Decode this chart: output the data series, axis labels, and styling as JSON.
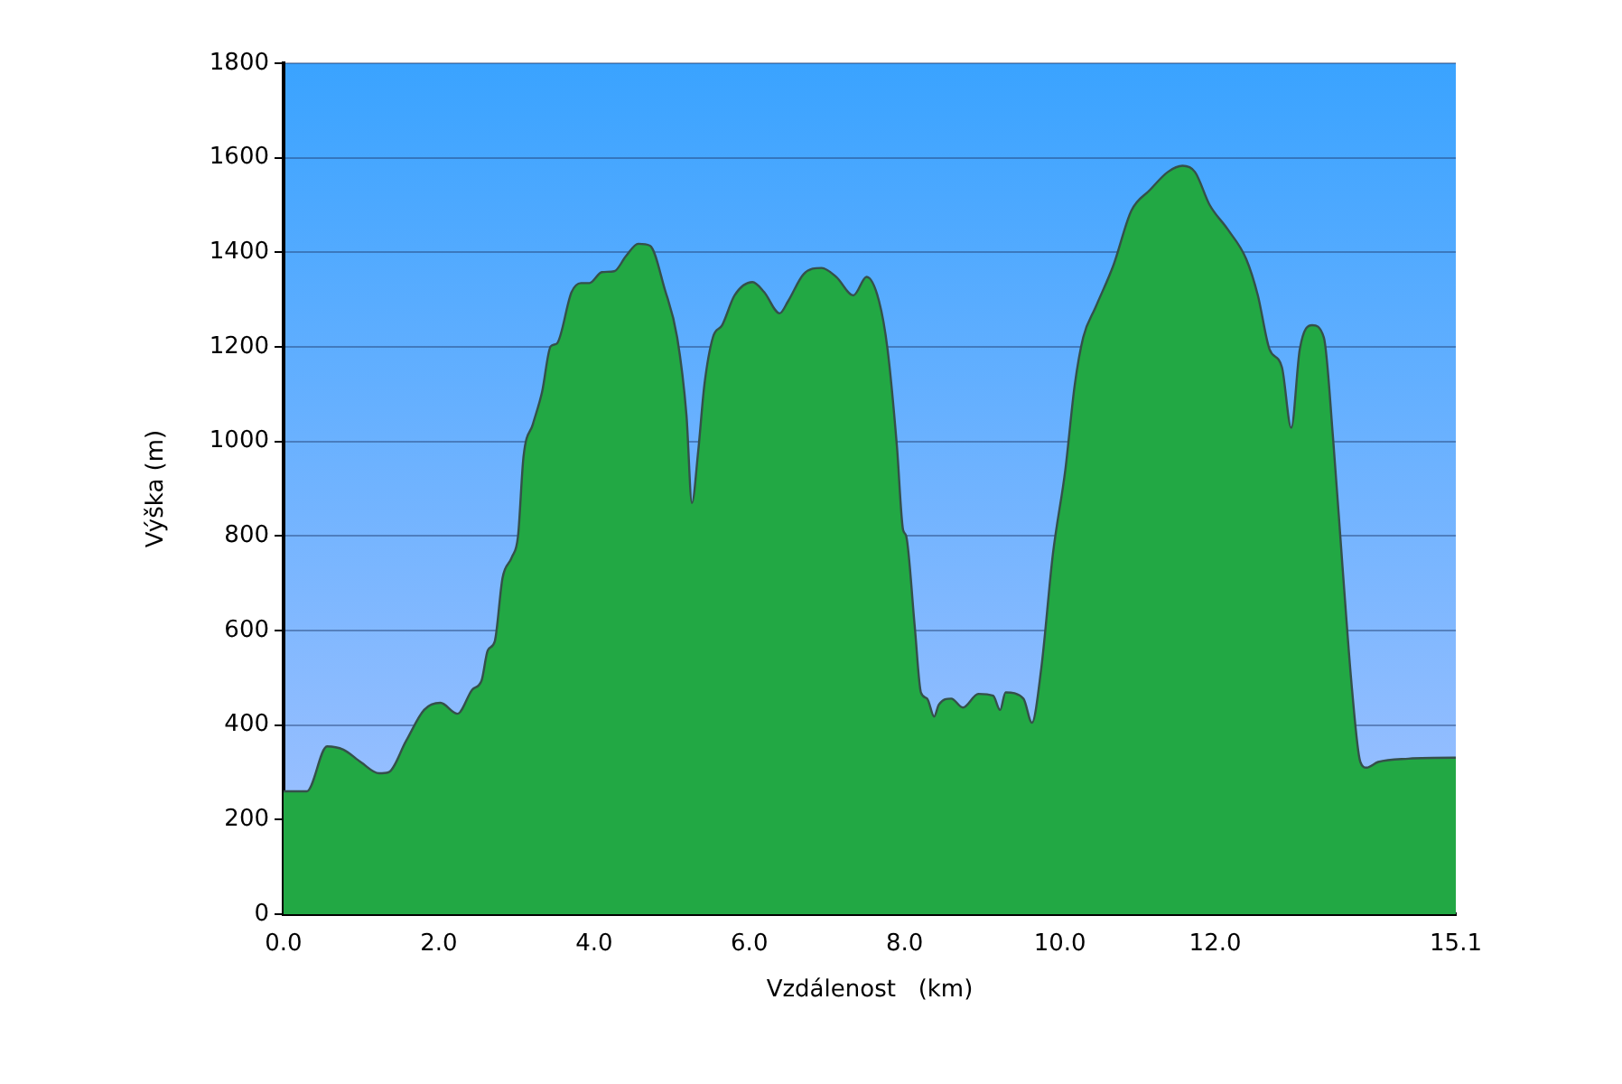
{
  "chart_data": {
    "type": "area",
    "xlabel": "Vzdálenost   (km)",
    "ylabel": "Výška (m)",
    "color": "#22a844",
    "grid": "y",
    "legend": false,
    "x": [
      0,
      0.3,
      0.56,
      0.77,
      1.0,
      1.23,
      1.35,
      1.58,
      1.81,
      2.02,
      2.24,
      2.43,
      2.55,
      2.63,
      2.72,
      2.82,
      2.94,
      3.02,
      3.09,
      3.21,
      3.33,
      3.44,
      3.52,
      3.71,
      3.83,
      3.94,
      4.1,
      4.26,
      4.41,
      4.57,
      4.72,
      4.91,
      5.07,
      5.19,
      5.26,
      5.34,
      5.42,
      5.53,
      5.65,
      5.81,
      6.04,
      6.19,
      6.39,
      6.5,
      6.7,
      6.93,
      7.12,
      7.34,
      7.51,
      7.67,
      7.78,
      7.9,
      7.98,
      8.02,
      8.13,
      8.21,
      8.29,
      8.38,
      8.44,
      8.6,
      8.75,
      8.95,
      9.14,
      9.23,
      9.3,
      9.53,
      9.64,
      9.76,
      9.91,
      10.07,
      10.19,
      10.3,
      10.46,
      10.69,
      10.92,
      11.16,
      11.39,
      11.58,
      11.74,
      11.93,
      12.16,
      12.4,
      12.55,
      12.7,
      12.86,
      12.98,
      13.09,
      13.25,
      13.4,
      13.52,
      13.64,
      13.76,
      13.87,
      13.95,
      14.1,
      14.49,
      15.07,
      15.1
    ],
    "values": [
      260,
      260,
      355,
      348,
      321,
      298,
      300,
      367,
      432,
      447,
      424,
      475,
      494,
      558,
      577,
      711,
      755,
      800,
      967,
      1036,
      1105,
      1201,
      1207,
      1316,
      1335,
      1335,
      1358,
      1360,
      1392,
      1418,
      1414,
      1322,
      1220,
      1055,
      870,
      978,
      1119,
      1220,
      1246,
      1309,
      1337,
      1316,
      1271,
      1297,
      1354,
      1367,
      1348,
      1309,
      1348,
      1297,
      1195,
      991,
      813,
      800,
      609,
      469,
      456,
      418,
      443,
      456,
      437,
      466,
      462,
      432,
      469,
      456,
      405,
      520,
      762,
      940,
      1118,
      1220,
      1284,
      1373,
      1488,
      1532,
      1570,
      1583,
      1570,
      1500,
      1449,
      1386,
      1309,
      1195,
      1157,
      1029,
      1195,
      1246,
      1220,
      1004,
      736,
      481,
      322,
      310,
      322,
      329,
      331,
      331
    ],
    "xlim": [
      0,
      15.1
    ],
    "xticks": [
      {
        "value": 0,
        "label": "0.0"
      },
      {
        "value": 2,
        "label": "2.0"
      },
      {
        "value": 4,
        "label": "4.0"
      },
      {
        "value": 6,
        "label": "6.0"
      },
      {
        "value": 8,
        "label": "8.0"
      },
      {
        "value": 10,
        "label": "10.0"
      },
      {
        "value": 12,
        "label": "12.0"
      },
      {
        "value": 15.1,
        "label": "15.1"
      }
    ],
    "ylim": [
      0,
      1800
    ],
    "yticks": [
      0,
      200,
      400,
      600,
      800,
      1000,
      1200,
      1400,
      1600,
      1800
    ]
  }
}
